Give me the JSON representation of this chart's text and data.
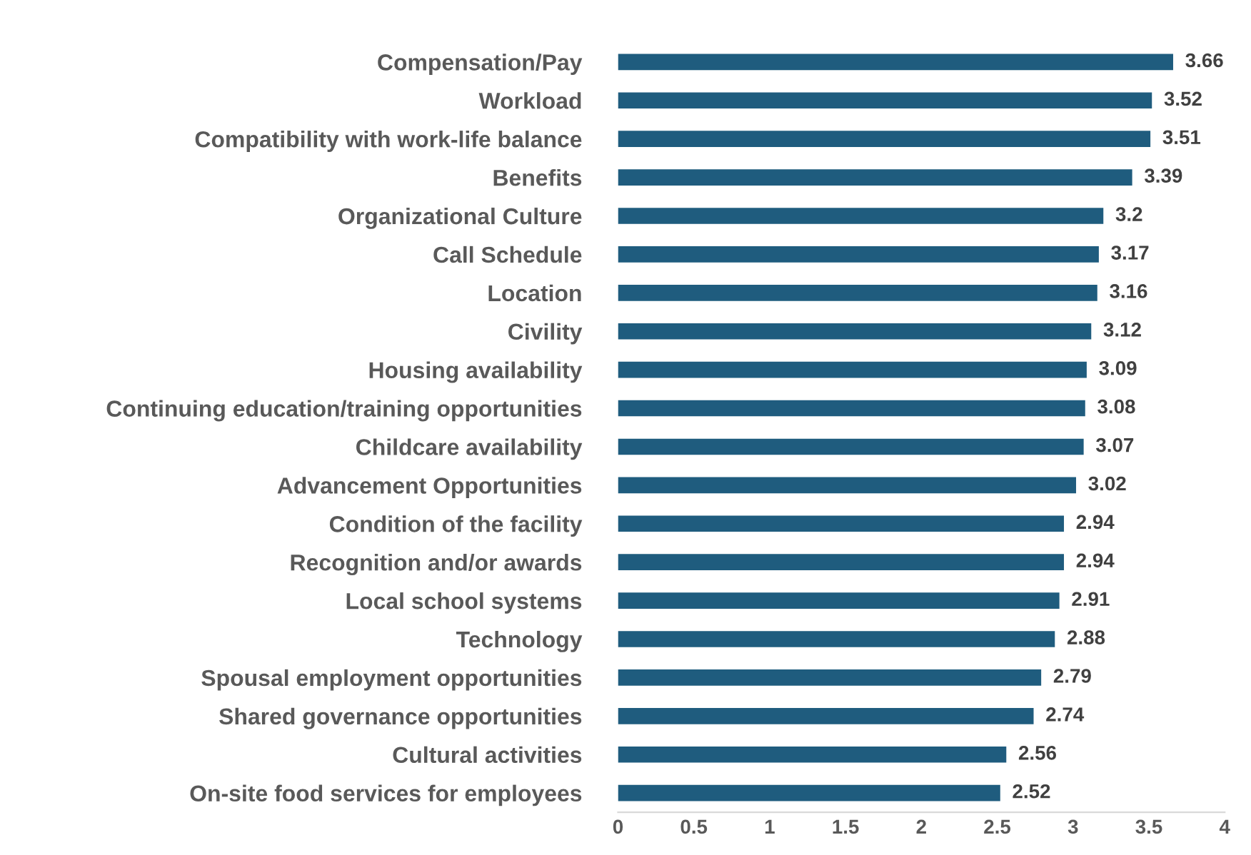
{
  "chart_data": {
    "type": "bar",
    "orientation": "horizontal",
    "categories": [
      "Compensation/Pay",
      "Workload",
      "Compatibility with work-life balance",
      "Benefits",
      "Organizational Culture",
      "Call Schedule",
      "Location",
      "Civility",
      "Housing availability",
      "Continuing education/training opportunities",
      "Childcare availability",
      "Advancement Opportunities",
      "Condition of the facility",
      "Recognition and/or awards",
      "Local school systems",
      "Technology",
      "Spousal employment opportunities",
      "Shared governance opportunities",
      "Cultural activities",
      "On-site food services for employees"
    ],
    "values": [
      3.66,
      3.52,
      3.51,
      3.39,
      3.2,
      3.17,
      3.16,
      3.12,
      3.09,
      3.08,
      3.07,
      3.02,
      2.94,
      2.94,
      2.91,
      2.88,
      2.79,
      2.74,
      2.56,
      2.52
    ],
    "color": "#1f5c7e",
    "xlim": [
      0,
      4
    ],
    "xticks": [
      0,
      0.5,
      1,
      1.5,
      2,
      2.5,
      3,
      3.5,
      4
    ],
    "data_labels": true,
    "grid": false,
    "legend": false
  }
}
